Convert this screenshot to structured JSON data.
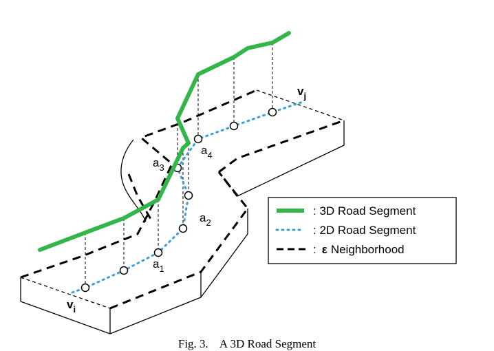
{
  "labels": {
    "vj_base": "v",
    "vj_sub": "j",
    "vi_base": "v",
    "vi_sub": "i",
    "a1_base": "a",
    "a1_sub": "1",
    "a2_base": "a",
    "a2_sub": "2",
    "a3_base": "a",
    "a3_sub": "3",
    "a4_base": "a",
    "a4_sub": "4"
  },
  "legend": {
    "item_3d": ": 3D Road Segment",
    "item_2d": ": 2D Road Segment",
    "item_eps_symbol": "ε",
    "item_eps_text": "Neighborhood",
    "item_eps_prefix": ":"
  },
  "caption": "Fig. 3.    A 3D Road Segment",
  "colors": {
    "road3d": "#33b54a",
    "road2d": "#3a9fd8",
    "neighborhood": "#000000"
  }
}
